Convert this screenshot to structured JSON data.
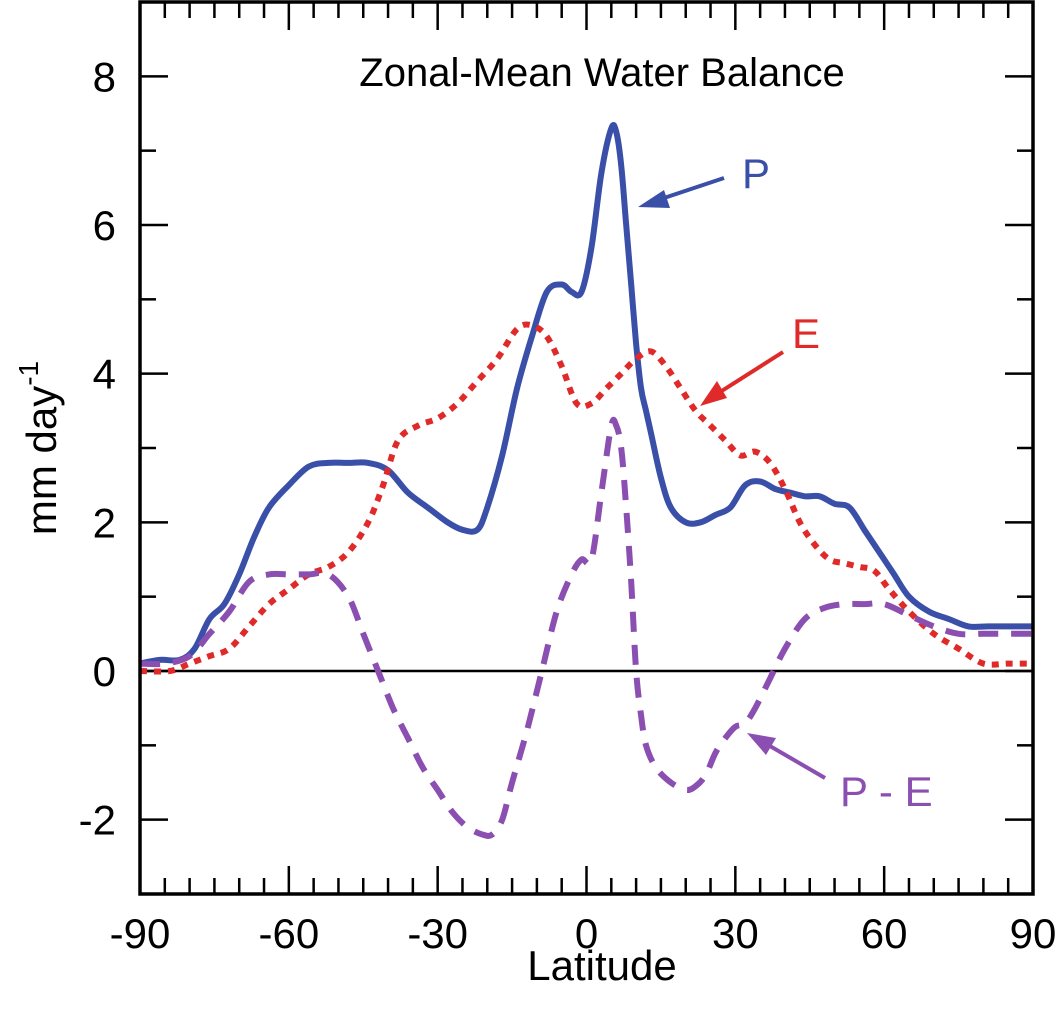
{
  "chart_data": {
    "type": "line",
    "title": "Zonal-Mean Water Balance",
    "xlabel": "Latitude",
    "ylabel": "mm day",
    "ylabel_superscript": "-1",
    "xlim": [
      -90,
      90
    ],
    "ylim": [
      -3,
      9
    ],
    "xticks": [
      -90,
      -60,
      -30,
      0,
      30,
      60,
      90
    ],
    "yticks": [
      -2,
      0,
      2,
      4,
      6,
      8
    ],
    "grid": false,
    "legend": "none",
    "series": [
      {
        "name": "P",
        "color": "#3a4fa8",
        "style": "solid",
        "x": [
          -90,
          -86,
          -82,
          -79,
          -76,
          -73,
          -70,
          -67,
          -64,
          -60,
          -56,
          -52,
          -48,
          -44,
          -40,
          -36,
          -32,
          -28,
          -25,
          -22,
          -20,
          -17,
          -14,
          -11,
          -8,
          -5,
          -3,
          -1,
          1,
          3,
          5,
          6,
          7,
          8,
          9,
          10,
          11,
          12,
          13,
          15,
          17,
          20,
          23,
          26,
          29,
          32,
          35,
          38,
          41,
          44,
          47,
          50,
          53,
          56,
          59,
          62,
          65,
          69,
          73,
          77,
          81,
          85,
          90
        ],
        "y": [
          0.1,
          0.15,
          0.15,
          0.3,
          0.7,
          0.9,
          1.3,
          1.8,
          2.2,
          2.5,
          2.75,
          2.8,
          2.8,
          2.8,
          2.7,
          2.4,
          2.2,
          2.0,
          1.9,
          1.9,
          2.2,
          2.9,
          3.8,
          4.5,
          5.1,
          5.2,
          5.1,
          5.1,
          5.7,
          6.7,
          7.3,
          7.25,
          6.8,
          6.0,
          5.2,
          4.4,
          3.8,
          3.5,
          3.2,
          2.6,
          2.2,
          2.0,
          2.0,
          2.1,
          2.2,
          2.5,
          2.55,
          2.45,
          2.4,
          2.35,
          2.35,
          2.25,
          2.2,
          1.9,
          1.6,
          1.3,
          1.0,
          0.8,
          0.7,
          0.6,
          0.6,
          0.6,
          0.6
        ]
      },
      {
        "name": "E",
        "color": "#e02a2a",
        "style": "dotted",
        "x": [
          -90,
          -84,
          -80,
          -76,
          -72,
          -68,
          -64,
          -60,
          -56,
          -52,
          -48,
          -44,
          -41,
          -38,
          -34,
          -30,
          -26,
          -22,
          -18,
          -14,
          -11,
          -8,
          -5,
          -2,
          1,
          4,
          7,
          10,
          13,
          16,
          19,
          22,
          25,
          28,
          31,
          34,
          37,
          40,
          43,
          46,
          49,
          52,
          55,
          58,
          61,
          65,
          70,
          75,
          80,
          85,
          90
        ],
        "y": [
          0.0,
          0.0,
          0.1,
          0.2,
          0.3,
          0.6,
          0.9,
          1.1,
          1.3,
          1.4,
          1.6,
          2.0,
          2.5,
          3.1,
          3.3,
          3.4,
          3.6,
          3.9,
          4.2,
          4.6,
          4.65,
          4.5,
          4.1,
          3.6,
          3.6,
          3.8,
          4.0,
          4.2,
          4.3,
          4.1,
          3.8,
          3.5,
          3.3,
          3.1,
          2.9,
          2.95,
          2.8,
          2.45,
          2.0,
          1.7,
          1.5,
          1.45,
          1.4,
          1.35,
          1.1,
          0.8,
          0.5,
          0.3,
          0.1,
          0.1,
          0.1
        ]
      },
      {
        "name": "P - E",
        "color": "#8a4fb0",
        "style": "dashed",
        "x": [
          -90,
          -85,
          -80,
          -76,
          -72,
          -68,
          -64,
          -60,
          -56,
          -52,
          -48,
          -45,
          -42,
          -39,
          -36,
          -33,
          -30,
          -27,
          -24,
          -21,
          -19,
          -17,
          -15,
          -12,
          -9,
          -6,
          -3,
          -1,
          1,
          3,
          5,
          6,
          7,
          8,
          9,
          10,
          11,
          12,
          14,
          17,
          20,
          22,
          24,
          26,
          28,
          30,
          32,
          34,
          37,
          40,
          44,
          48,
          52,
          56,
          60,
          65,
          70,
          75,
          80,
          85,
          90
        ],
        "y": [
          0.1,
          0.1,
          0.2,
          0.5,
          0.8,
          1.2,
          1.3,
          1.3,
          1.3,
          1.3,
          1.0,
          0.5,
          0.0,
          -0.5,
          -0.9,
          -1.3,
          -1.6,
          -1.9,
          -2.1,
          -2.2,
          -2.2,
          -2.0,
          -1.5,
          -0.8,
          0.0,
          0.8,
          1.3,
          1.5,
          1.5,
          2.4,
          3.3,
          3.3,
          3.0,
          2.2,
          1.2,
          0.0,
          -0.6,
          -1.0,
          -1.3,
          -1.5,
          -1.6,
          -1.55,
          -1.4,
          -1.1,
          -0.9,
          -0.75,
          -0.7,
          -0.5,
          -0.1,
          0.3,
          0.7,
          0.85,
          0.9,
          0.9,
          0.9,
          0.75,
          0.6,
          0.5,
          0.5,
          0.5,
          0.5
        ]
      }
    ],
    "annotations": [
      {
        "text": "P",
        "color": "#3a4fa8"
      },
      {
        "text": "E",
        "color": "#e02a2a"
      },
      {
        "text": "P - E",
        "color": "#8a4fb0"
      }
    ]
  }
}
